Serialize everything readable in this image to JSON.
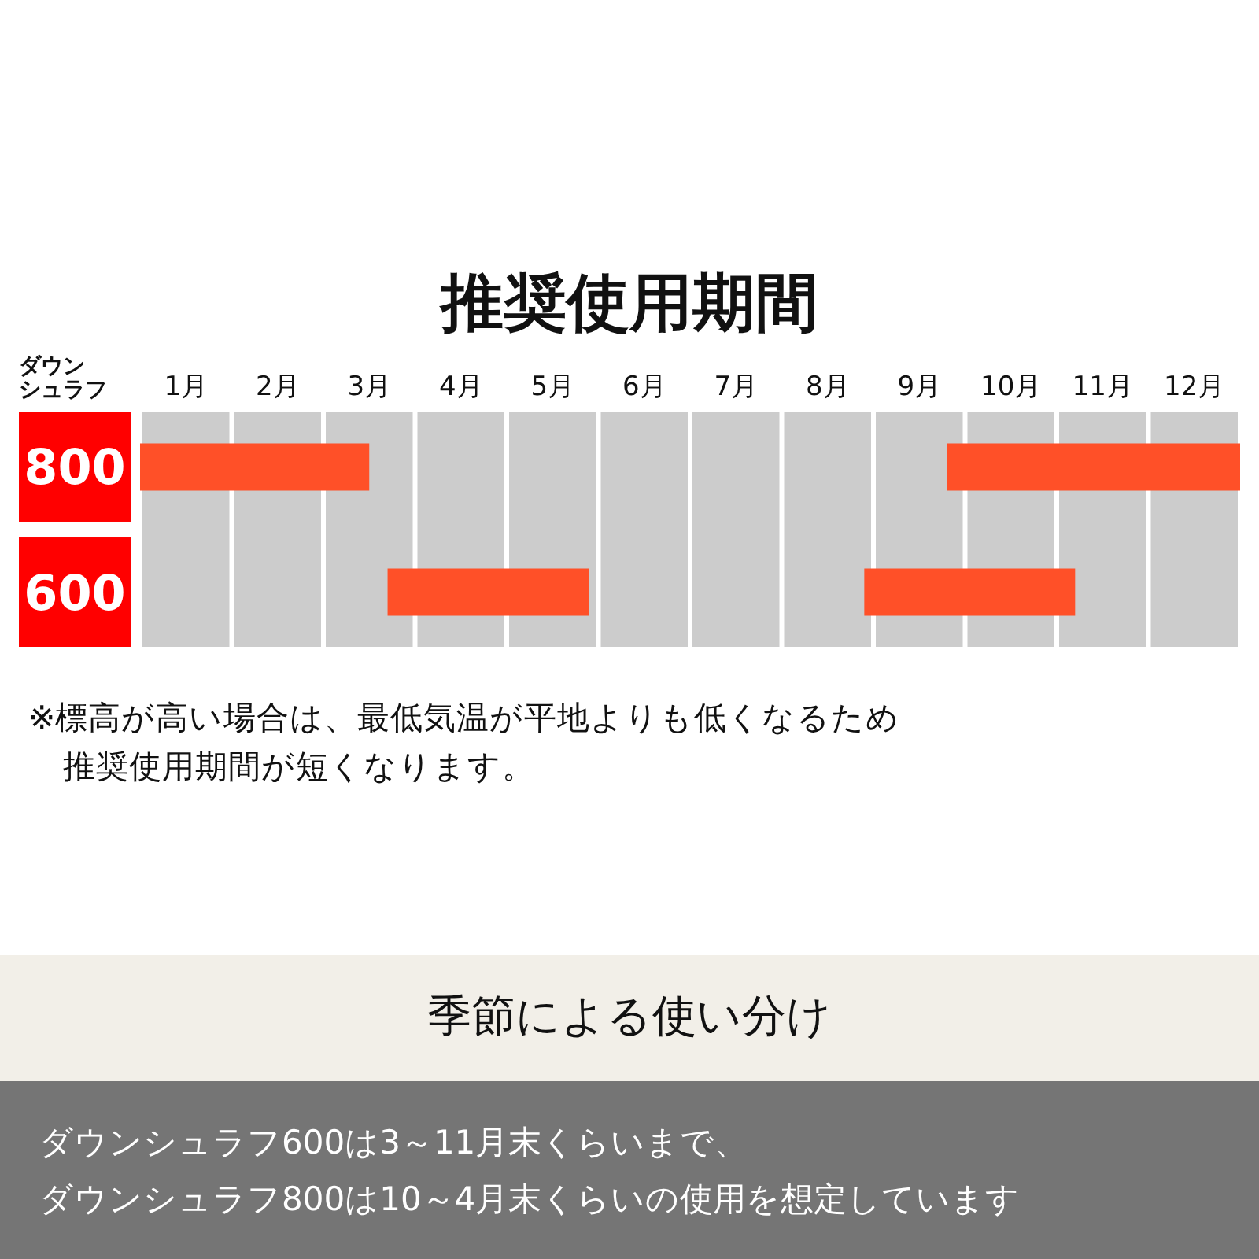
{
  "chart_data": {
    "type": "bar",
    "orientation": "horizontal",
    "title": "推奨使用期間",
    "ylabel": "ダウンシュラフ",
    "categories": [
      "800",
      "600"
    ],
    "series": [
      {
        "color": "#ff5028",
        "base": [
          0,
          2.7
        ],
        "values": [
          2.5,
          2.2
        ]
      },
      {
        "color": "#ff5028",
        "base": [
          8.8,
          7.9
        ],
        "values": [
          3.2,
          2.3
        ]
      }
    ],
    "xlim": [
      0,
      12
    ],
    "xticks": [
      {
        "value": 0.5,
        "label": "1月"
      },
      {
        "value": 1.5,
        "label": "2月"
      },
      {
        "value": 2.5,
        "label": "3月"
      },
      {
        "value": 3.5,
        "label": "4月"
      },
      {
        "value": 4.5,
        "label": "5月"
      },
      {
        "value": 5.5,
        "label": "6月"
      },
      {
        "value": 6.5,
        "label": "7月"
      },
      {
        "value": 7.5,
        "label": "8月"
      },
      {
        "value": 8.5,
        "label": "9月"
      },
      {
        "value": 9.5,
        "label": "10月"
      },
      {
        "value": 10.5,
        "label": "11月"
      },
      {
        "value": 11.5,
        "label": "12月"
      }
    ],
    "bands": [
      {
        "axis": "x",
        "from": 0,
        "to": 1,
        "color": "#cccccc"
      },
      {
        "axis": "x",
        "from": 1,
        "to": 2,
        "color": "#cccccc"
      },
      {
        "axis": "x",
        "from": 2,
        "to": 3,
        "color": "#cccccc"
      },
      {
        "axis": "x",
        "from": 3,
        "to": 4,
        "color": "#cccccc"
      },
      {
        "axis": "x",
        "from": 4,
        "to": 5,
        "color": "#cccccc"
      },
      {
        "axis": "x",
        "from": 5,
        "to": 6,
        "color": "#cccccc"
      },
      {
        "axis": "x",
        "from": 6,
        "to": 7,
        "color": "#cccccc"
      },
      {
        "axis": "x",
        "from": 7,
        "to": 8,
        "color": "#cccccc"
      },
      {
        "axis": "x",
        "from": 8,
        "to": 9,
        "color": "#cccccc"
      },
      {
        "axis": "x",
        "from": 9,
        "to": 10,
        "color": "#cccccc"
      },
      {
        "axis": "x",
        "from": 10,
        "to": 11,
        "color": "#cccccc"
      },
      {
        "axis": "x",
        "from": 11,
        "to": 12,
        "color": "#cccccc"
      }
    ],
    "annotations": [
      "※標高が高い場合は、最低気温が平地よりも低くなるため推奨使用期間が短くなります。",
      "季節による使い分け",
      "ダウンシュラフ600は3～11月末くらいまで、ダウンシュラフ800は10～4月末くらいの使用を想定しています"
    ]
  }
}
